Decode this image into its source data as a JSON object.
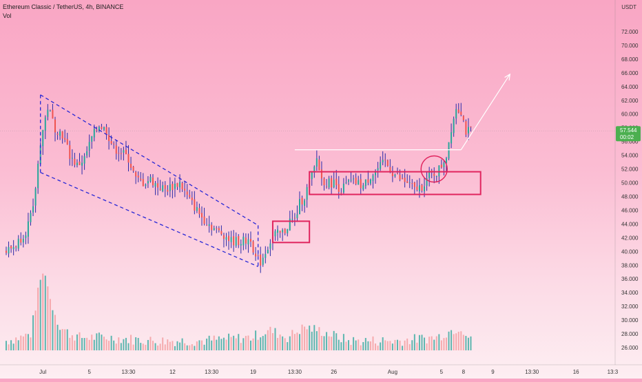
{
  "header": {
    "symbol_line": "Ethereum Classic / TetherUS, 4h, BINANCE",
    "indicator": "Vol"
  },
  "price_axis": {
    "unit": "USDT",
    "ticks": [
      "26.000",
      "28.000",
      "30.000",
      "32.000",
      "34.000",
      "36.000",
      "38.000",
      "40.000",
      "42.000",
      "44.000",
      "46.000",
      "48.000",
      "50.000",
      "52.000",
      "54.000",
      "56.000",
      "58.000",
      "60.000",
      "62.000",
      "64.000",
      "66.000",
      "68.000",
      "70.000",
      "72.000"
    ],
    "current_price": "57.544",
    "countdown": "00:02",
    "current_price_value": 57.544
  },
  "time_axis": {
    "labels": [
      "Jul",
      "5",
      "13:30",
      "12",
      "13:30",
      "19",
      "13:30",
      "26",
      "Aug",
      "5",
      "8",
      "9",
      "13:30",
      "16",
      "13:3"
    ]
  },
  "colors": {
    "up": "#26a69a",
    "down": "#ef5350",
    "wick_up": "#2a2aa8",
    "channel": "#2727d6",
    "box": "#e0245e",
    "arrow": "#ffffff",
    "price_label": "#4caf50"
  },
  "chart_data": {
    "type": "candlestick",
    "title": "Ethereum Classic / TetherUS, 4h, BINANCE",
    "xlabel": "",
    "ylabel": "USDT",
    "ylim": [
      24.7,
      73.6
    ],
    "grid": false,
    "last_price": 57.544,
    "anchors": [
      [
        0,
        40
      ],
      [
        4,
        41
      ],
      [
        8,
        43
      ],
      [
        11,
        46
      ],
      [
        14,
        56
      ],
      [
        17,
        61
      ],
      [
        20,
        58
      ],
      [
        23,
        57
      ],
      [
        26,
        54
      ],
      [
        29,
        52.5
      ],
      [
        32,
        53.5
      ],
      [
        35,
        56.5
      ],
      [
        38,
        58.5
      ],
      [
        41,
        57.5
      ],
      [
        44,
        55
      ],
      [
        47,
        54.5
      ],
      [
        50,
        53.5
      ],
      [
        53,
        50.5
      ],
      [
        56,
        50
      ],
      [
        59,
        50.5
      ],
      [
        62,
        49.5
      ],
      [
        65,
        49
      ],
      [
        68,
        49.5
      ],
      [
        71,
        50
      ],
      [
        74,
        48
      ],
      [
        77,
        46.5
      ],
      [
        80,
        45
      ],
      [
        83,
        44
      ],
      [
        86,
        43
      ],
      [
        89,
        42.5
      ],
      [
        92,
        41.5
      ],
      [
        95,
        41.5
      ],
      [
        98,
        41.5
      ],
      [
        100,
        42
      ],
      [
        102,
        39
      ],
      [
        104,
        38.5
      ],
      [
        106,
        40
      ],
      [
        108,
        41.5
      ],
      [
        110,
        42.5
      ],
      [
        112,
        42.5
      ],
      [
        114,
        43
      ],
      [
        116,
        44.5
      ],
      [
        118,
        44.5
      ],
      [
        120,
        47
      ],
      [
        122,
        48
      ],
      [
        124,
        50
      ],
      [
        126,
        52
      ],
      [
        127,
        53.5
      ],
      [
        129,
        50.5
      ],
      [
        131,
        50
      ],
      [
        134,
        50
      ],
      [
        137,
        49
      ],
      [
        140,
        50
      ],
      [
        143,
        50
      ],
      [
        146,
        49.5
      ],
      [
        149,
        51
      ],
      [
        152,
        52
      ],
      [
        155,
        53
      ],
      [
        158,
        51.5
      ],
      [
        161,
        50.5
      ],
      [
        164,
        50
      ],
      [
        167,
        49
      ],
      [
        170,
        49.5
      ],
      [
        173,
        51
      ],
      [
        176,
        51.5
      ],
      [
        178,
        52.5
      ],
      [
        180,
        54
      ],
      [
        182,
        58
      ],
      [
        184,
        61
      ],
      [
        186,
        60.5
      ],
      [
        188,
        57.5
      ],
      [
        190,
        57.5
      ]
    ],
    "volume_anchors": [
      [
        0,
        27
      ],
      [
        6,
        27.5
      ],
      [
        10,
        28
      ],
      [
        14,
        36
      ],
      [
        16,
        37
      ],
      [
        18,
        33
      ],
      [
        22,
        29
      ],
      [
        26,
        28
      ],
      [
        30,
        27.5
      ],
      [
        40,
        27.5
      ],
      [
        60,
        27
      ],
      [
        80,
        27
      ],
      [
        100,
        27.5
      ],
      [
        108,
        28.5
      ],
      [
        115,
        27.5
      ],
      [
        122,
        29
      ],
      [
        128,
        28.5
      ],
      [
        140,
        27
      ],
      [
        160,
        27
      ],
      [
        176,
        27.5
      ],
      [
        182,
        28.5
      ],
      [
        186,
        29
      ],
      [
        190,
        27
      ]
    ],
    "annotations": {
      "channel_upper": [
        [
          14,
          62.8
        ],
        [
          103,
          43.8
        ]
      ],
      "channel_lower": [
        [
          14,
          51.5
        ],
        [
          103,
          37.8
        ]
      ],
      "breakout_box": {
        "x": [
          109,
          124
        ],
        "y": [
          41.3,
          44.4
        ]
      },
      "range_box": {
        "x": [
          124,
          194
        ],
        "y": [
          48.3,
          51.6
        ]
      },
      "resistance_line": {
        "x": [
          118,
          186
        ],
        "y": 54.8
      },
      "projection_arrow": [
        [
          186,
          54.8
        ],
        [
          206,
          65.8
        ]
      ],
      "breakout_circle": {
        "x": 175,
        "y": 52.0
      }
    }
  }
}
